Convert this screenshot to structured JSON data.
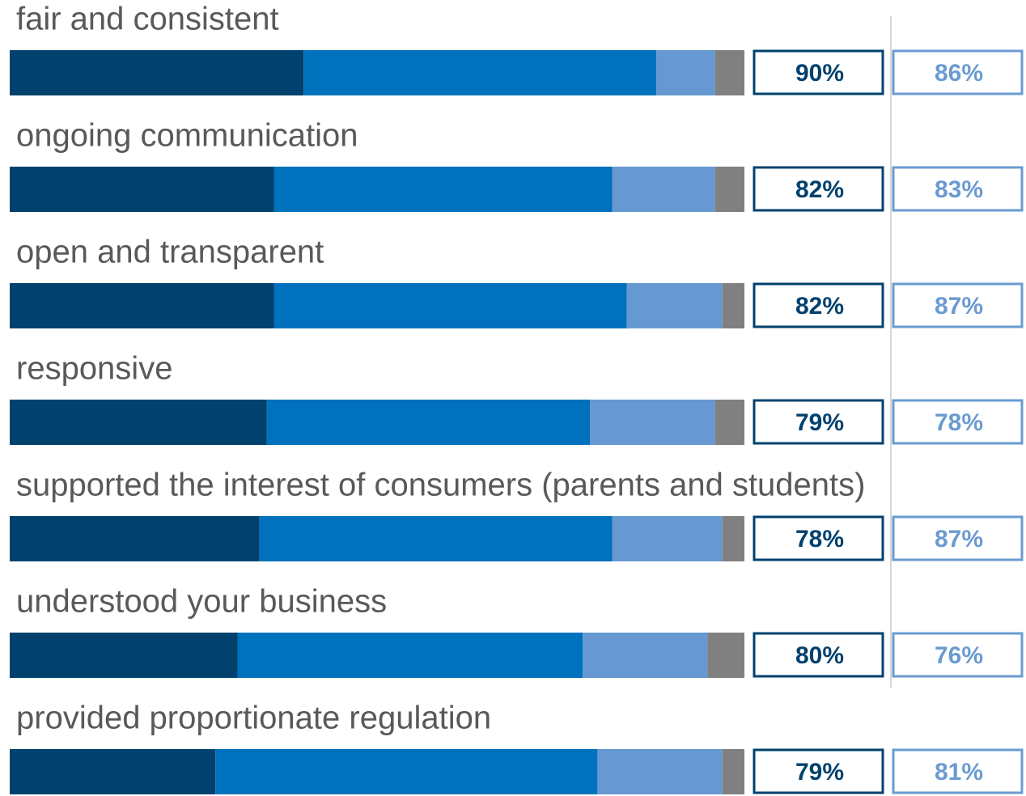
{
  "chart_data": {
    "type": "bar",
    "orientation": "horizontal",
    "stacked": true,
    "categories": [
      "fair and consistent",
      "ongoing communication",
      "open and transparent",
      "responsive",
      "supported the interest of consumers (parents and students)",
      "understood your business",
      "provided proportionate regulation"
    ],
    "xlim": [
      0,
      100
    ],
    "series": [
      {
        "color": "#00416e",
        "values": [
          40,
          36,
          36,
          35,
          34,
          31,
          28
        ]
      },
      {
        "color": "#0071bc",
        "values": [
          48,
          46,
          48,
          44,
          48,
          47,
          52
        ]
      },
      {
        "color": "#6699d1",
        "values": [
          8,
          14,
          13,
          17,
          15,
          17,
          17
        ]
      },
      {
        "color": "#808080",
        "values": [
          4,
          4,
          3,
          4,
          3,
          5,
          3
        ]
      }
    ],
    "columns": [
      {
        "color": "#00416e",
        "values": [
          90,
          82,
          82,
          79,
          78,
          80,
          79
        ],
        "value_labels": [
          "90%",
          "82%",
          "82%",
          "79%",
          "78%",
          "80%",
          "79%"
        ]
      },
      {
        "color": "#6a9bd1",
        "values": [
          86,
          83,
          87,
          78,
          87,
          76,
          81
        ],
        "value_labels": [
          "86%",
          "83%",
          "87%",
          "78%",
          "87%",
          "76%",
          "81%"
        ]
      }
    ]
  }
}
